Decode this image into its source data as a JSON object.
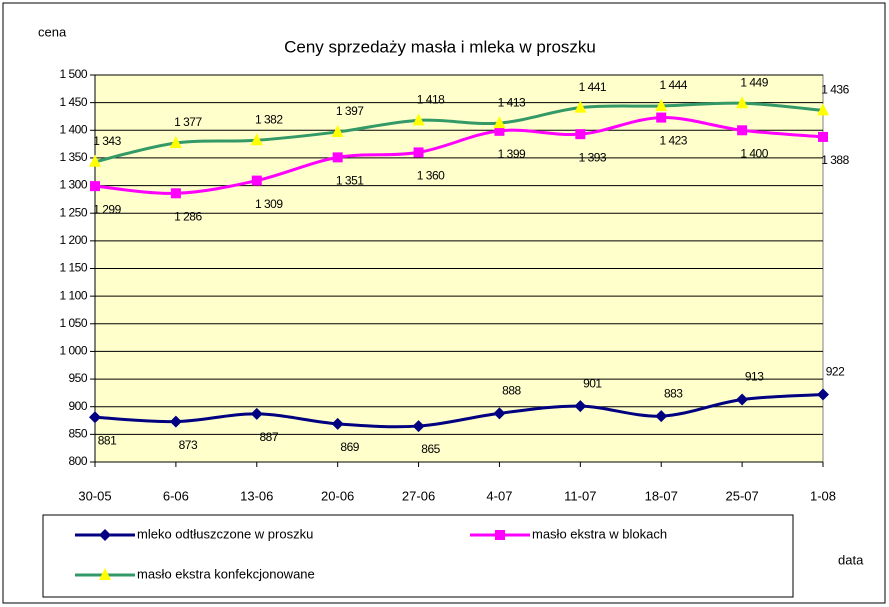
{
  "chart_data": {
    "type": "line",
    "title": "Ceny sprzedaży masła i mleka w proszku",
    "ylabel": "cena",
    "xlabel": "data",
    "categories": [
      "30-05",
      "6-06",
      "13-06",
      "20-06",
      "27-06",
      "4-07",
      "11-07",
      "18-07",
      "25-07",
      "1-08"
    ],
    "ylim": [
      800,
      1500
    ],
    "yticks": [
      800,
      850,
      900,
      950,
      {
        "value": 1000,
        "label": "1 000"
      },
      {
        "value": 1050,
        "label": "1 050"
      },
      {
        "value": 1100,
        "label": "1 100"
      },
      {
        "value": 1150,
        "label": "1 150"
      },
      {
        "value": 1200,
        "label": "1 200"
      },
      {
        "value": 1250,
        "label": "1 250"
      },
      {
        "value": 1300,
        "label": "1 300"
      },
      {
        "value": 1350,
        "label": "1 350"
      },
      {
        "value": 1400,
        "label": "1 400"
      },
      {
        "value": 1450,
        "label": "1 450"
      },
      {
        "value": 1500,
        "label": "1 500"
      }
    ],
    "grid": true,
    "legend": "bottom",
    "background": "#ffffcc",
    "series": [
      {
        "name": "mleko odtłuszczone w proszku",
        "color": "#000080",
        "marker": "diamond",
        "marker_color": "#000080",
        "values": [
          881,
          873,
          887,
          869,
          865,
          888,
          901,
          883,
          913,
          922
        ]
      },
      {
        "name": "masło ekstra w blokach",
        "color": "#ff00ff",
        "marker": "square",
        "marker_color": "#ff00ff",
        "values": [
          1299,
          1286,
          1309,
          1351,
          1360,
          1399,
          1393,
          1423,
          1400,
          1388
        ],
        "value_labels": [
          "1 299",
          "1 286",
          "1 309",
          "1 351",
          "1 360",
          "1 399",
          "1 393",
          "1 423",
          "1 400",
          "1 388"
        ]
      },
      {
        "name": "masło ekstra konfekcjonowane",
        "color": "#339966",
        "marker": "triangle",
        "marker_color": "#ffff00",
        "values": [
          1343,
          1377,
          1382,
          1397,
          1418,
          1413,
          1441,
          1444,
          1449,
          1436
        ],
        "value_labels": [
          "1 343",
          "1 377",
          "1 382",
          "1 397",
          "1 418",
          "1 413",
          "1 441",
          "1 444",
          "1 449",
          "1 436"
        ]
      }
    ]
  }
}
